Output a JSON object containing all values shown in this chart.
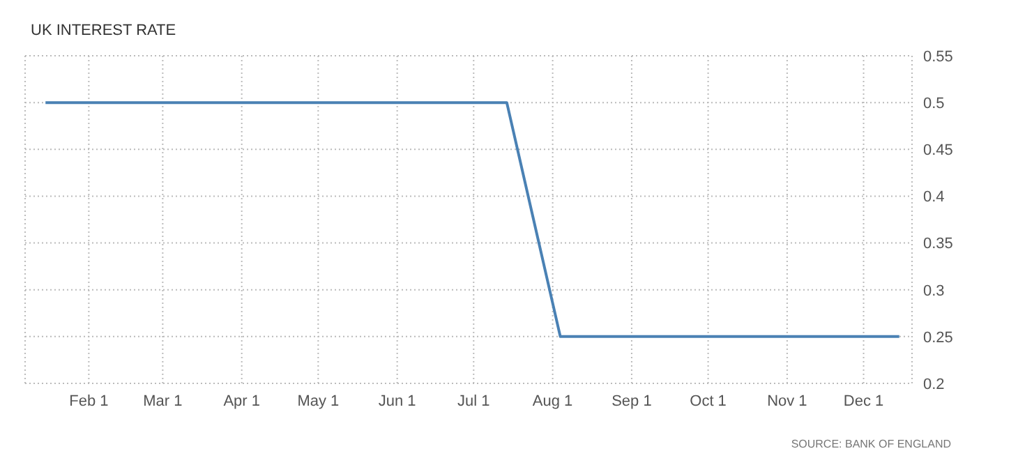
{
  "chart_data": {
    "type": "line",
    "title": "UK INTEREST RATE",
    "annotations": [
      "SOURCE: BANK OF ENGLAND"
    ],
    "x": [
      "--01-15",
      "--07-14",
      "--08-04",
      "--12-15"
    ],
    "series": [
      {
        "color": "#4a81b4",
        "values": [
          0.5,
          0.5,
          0.25,
          0.25
        ]
      }
    ],
    "xlim": [
      "--01-07",
      "--12-20"
    ],
    "xticks": [
      {
        "value": "--02-01",
        "label": "Feb 1"
      },
      {
        "value": "--03-01",
        "label": "Mar 1"
      },
      {
        "value": "--04-01",
        "label": "Apr 1"
      },
      {
        "value": "--05-01",
        "label": "May 1"
      },
      {
        "value": "--06-01",
        "label": "Jun 1"
      },
      {
        "value": "--07-01",
        "label": "Jul 1"
      },
      {
        "value": "--08-01",
        "label": "Aug 1"
      },
      {
        "value": "--09-01",
        "label": "Sep 1"
      },
      {
        "value": "--10-01",
        "label": "Oct 1"
      },
      {
        "value": "--11-01",
        "label": "Nov 1"
      },
      {
        "value": "--12-01",
        "label": "Dec 1"
      }
    ],
    "ylim": [
      0.2,
      0.55
    ],
    "yticks": [
      0.2,
      0.25,
      0.3,
      0.35,
      0.4,
      0.45,
      0.5,
      0.55
    ],
    "grid": true,
    "legend": false,
    "marker": "none",
    "line_style": "solid"
  }
}
